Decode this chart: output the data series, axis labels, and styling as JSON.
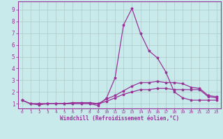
{
  "background_color": "#c8eaea",
  "grid_color": "#b0c8c8",
  "line_color": "#993399",
  "xlabel": "Windchill (Refroidissement éolien,°C)",
  "xlabel_color": "#993399",
  "xtick_color": "#993399",
  "ytick_color": "#993399",
  "spine_color": "#993399",
  "xlim": [
    -0.5,
    23.5
  ],
  "ylim": [
    0.6,
    9.7
  ],
  "xticks": [
    0,
    1,
    2,
    3,
    4,
    5,
    6,
    7,
    8,
    9,
    10,
    11,
    12,
    13,
    14,
    15,
    16,
    17,
    18,
    19,
    20,
    21,
    22,
    23
  ],
  "yticks": [
    1,
    2,
    3,
    4,
    5,
    6,
    7,
    8,
    9
  ],
  "line1_x": [
    0,
    1,
    2,
    3,
    4,
    5,
    6,
    7,
    8,
    9,
    10,
    11,
    12,
    13,
    14,
    15,
    16,
    17,
    18,
    19,
    20,
    21,
    22,
    23
  ],
  "line1_y": [
    1.3,
    1.0,
    0.9,
    1.0,
    1.0,
    1.0,
    1.0,
    1.0,
    1.0,
    0.85,
    1.5,
    3.2,
    7.7,
    9.1,
    7.0,
    5.5,
    4.9,
    3.7,
    2.0,
    1.5,
    1.3,
    1.3,
    1.3,
    1.3
  ],
  "line2_x": [
    0,
    1,
    2,
    3,
    4,
    5,
    6,
    7,
    8,
    9,
    10,
    11,
    12,
    13,
    14,
    15,
    16,
    17,
    18,
    19,
    20,
    21,
    22,
    23
  ],
  "line2_y": [
    1.3,
    1.0,
    1.0,
    1.0,
    1.0,
    1.0,
    1.1,
    1.1,
    1.1,
    1.0,
    1.4,
    1.7,
    2.1,
    2.5,
    2.8,
    2.8,
    2.9,
    2.8,
    2.8,
    2.7,
    2.4,
    2.3,
    1.7,
    1.6
  ],
  "line3_x": [
    0,
    1,
    2,
    3,
    4,
    5,
    6,
    7,
    8,
    9,
    10,
    11,
    12,
    13,
    14,
    15,
    16,
    17,
    18,
    19,
    20,
    21,
    22,
    23
  ],
  "line3_y": [
    1.3,
    1.0,
    1.0,
    1.0,
    1.0,
    1.0,
    1.0,
    1.0,
    1.0,
    1.0,
    1.2,
    1.5,
    1.8,
    2.0,
    2.2,
    2.2,
    2.3,
    2.3,
    2.2,
    2.2,
    2.2,
    2.2,
    1.6,
    1.5
  ],
  "xtick_fontsize": 4.5,
  "ytick_fontsize": 5.5,
  "xlabel_fontsize": 5.5
}
